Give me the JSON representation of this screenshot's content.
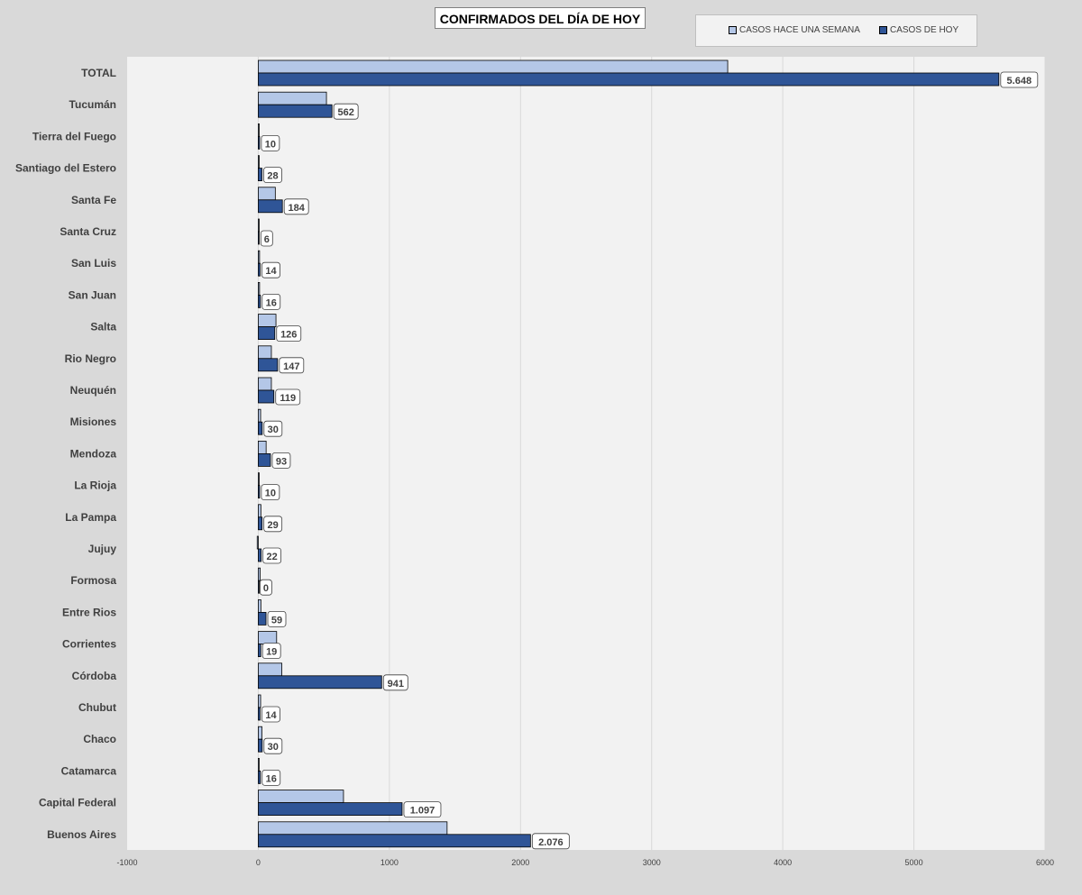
{
  "chart_data": {
    "type": "bar",
    "orientation": "horizontal",
    "title": "CONFIRMADOS DEL DÍA DE HOY",
    "categories": [
      "TOTAL",
      "Tucumán",
      "Tierra del Fuego",
      "Santiago del Estero",
      "Santa Fe",
      "Santa Cruz",
      "San Luis",
      "San Juan",
      "Salta",
      "Rio Negro",
      "Neuquén",
      "Misiones",
      "Mendoza",
      "La Rioja",
      "La Pampa",
      "Jujuy",
      "Formosa",
      "Entre Rios",
      "Corrientes",
      "Córdoba",
      "Chubut",
      "Chaco",
      "Catamarca",
      "Capital Federal",
      "Buenos Aires"
    ],
    "series": [
      {
        "name": "CASOS HACE UNA SEMANA",
        "color": "#b4c7e7",
        "values": [
          3580,
          520,
          6,
          6,
          130,
          3,
          10,
          10,
          135,
          100,
          100,
          18,
          60,
          7,
          20,
          -8,
          15,
          20,
          140,
          180,
          18,
          28,
          3,
          650,
          1440
        ]
      },
      {
        "name": "CASOS DE HOY",
        "color": "#2f5597",
        "values": [
          5648,
          562,
          10,
          28,
          184,
          6,
          14,
          16,
          126,
          147,
          119,
          30,
          93,
          10,
          29,
          22,
          0,
          59,
          19,
          941,
          14,
          30,
          16,
          1097,
          2076
        ],
        "labels": [
          "5.648",
          "562",
          "10",
          "28",
          "184",
          "6",
          "14",
          "16",
          "126",
          "147",
          "119",
          "30",
          "93",
          "10",
          "29",
          "22",
          "0",
          "59",
          "19",
          "941",
          "14",
          "30",
          "16",
          "1.097",
          "2.076"
        ]
      }
    ],
    "xlim": [
      -1000,
      6000
    ],
    "xticks": [
      -1000,
      0,
      1000,
      2000,
      3000,
      4000,
      5000,
      6000
    ],
    "grid": true,
    "legend_position": "top-right"
  }
}
